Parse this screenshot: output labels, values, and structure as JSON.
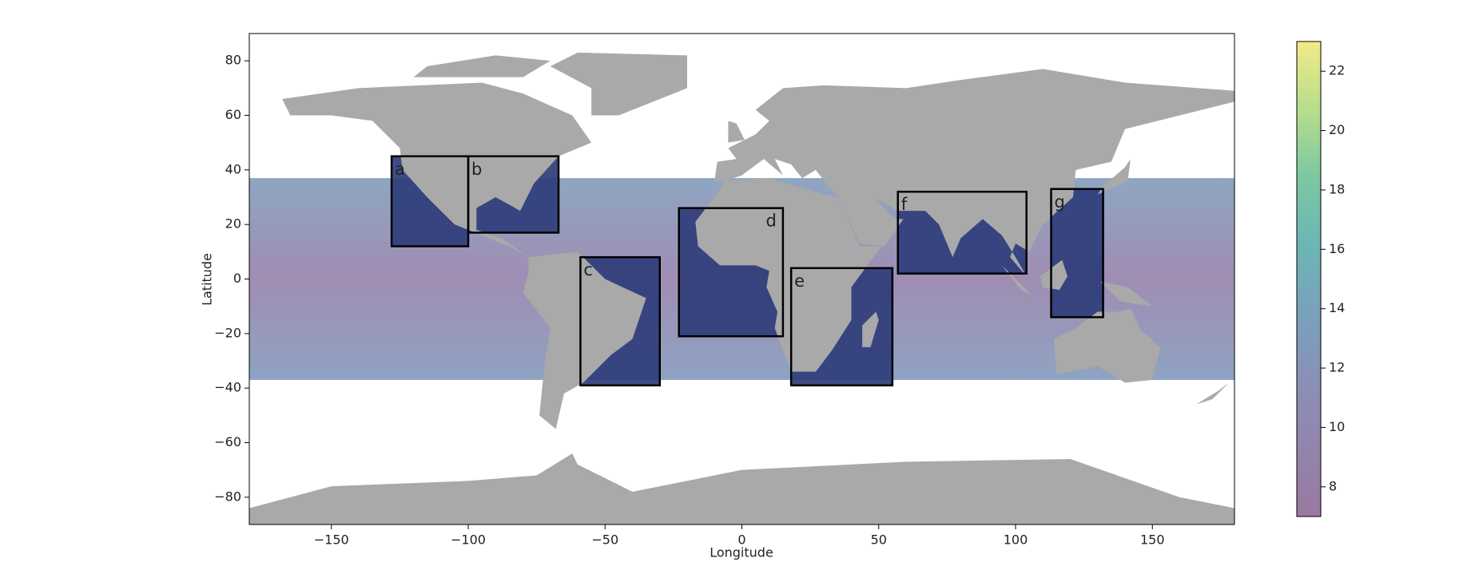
{
  "chart_data": {
    "type": "map",
    "x_label": "Longitude",
    "y_label": "Latitude",
    "xlim": [
      -180,
      180
    ],
    "ylim": [
      -90,
      90
    ],
    "xticks": [
      {
        "value": -150,
        "label": "−150"
      },
      {
        "value": -100,
        "label": "−100"
      },
      {
        "value": -50,
        "label": "−50"
      },
      0,
      50,
      100,
      150
    ],
    "yticks": [
      {
        "value": -80,
        "label": "−80"
      },
      {
        "value": -60,
        "label": "−60"
      },
      {
        "value": -40,
        "label": "−40"
      },
      {
        "value": -20,
        "label": "−20"
      },
      0,
      20,
      40,
      60,
      80
    ],
    "colorbar": {
      "lim": [
        7,
        23
      ],
      "ticks": [
        8,
        10,
        12,
        14,
        16,
        18,
        20,
        22
      ]
    },
    "boxes": [
      {
        "label": "a",
        "lon": [
          -128,
          -100
        ],
        "lat": [
          12,
          45
        ]
      },
      {
        "label": "b",
        "lon": [
          -100,
          -67
        ],
        "lat": [
          17,
          45
        ]
      },
      {
        "label": "c",
        "lon": [
          -59,
          -30
        ],
        "lat": [
          -39,
          8
        ]
      },
      {
        "label": "d",
        "lon": [
          -23,
          15
        ],
        "lat": [
          -21,
          26
        ]
      },
      {
        "label": "e",
        "lon": [
          18,
          55
        ],
        "lat": [
          -39,
          4
        ]
      },
      {
        "label": "f",
        "lon": [
          57,
          104
        ],
        "lat": [
          2,
          32
        ]
      },
      {
        "label": "g",
        "lon": [
          113,
          132
        ],
        "lat": [
          -14,
          33
        ]
      }
    ]
  }
}
